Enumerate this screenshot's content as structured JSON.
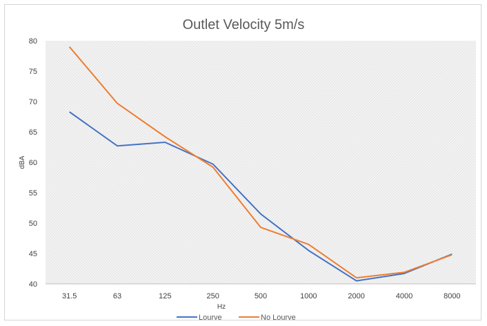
{
  "chart_data": {
    "type": "line",
    "title": "Outlet Velocity 5m/s",
    "xlabel": "Hz",
    "ylabel": "dBA",
    "categories": [
      "31.5",
      "63",
      "125",
      "250",
      "500",
      "1000",
      "2000",
      "4000",
      "8000"
    ],
    "ylim": [
      40,
      80
    ],
    "yticks": [
      "40",
      "45",
      "50",
      "55",
      "60",
      "65",
      "70",
      "75",
      "80"
    ],
    "grid": false,
    "legend_position": "bottom",
    "series": [
      {
        "name": "Lourve",
        "color": "#4472c4",
        "values": [
          68.3,
          62.7,
          63.3,
          59.7,
          51.5,
          45.5,
          40.5,
          41.7,
          44.9
        ]
      },
      {
        "name": "No Lourve",
        "color": "#ed7d31",
        "values": [
          79.0,
          69.7,
          64.2,
          59.2,
          49.3,
          46.5,
          41.0,
          41.9,
          44.8
        ]
      }
    ]
  }
}
